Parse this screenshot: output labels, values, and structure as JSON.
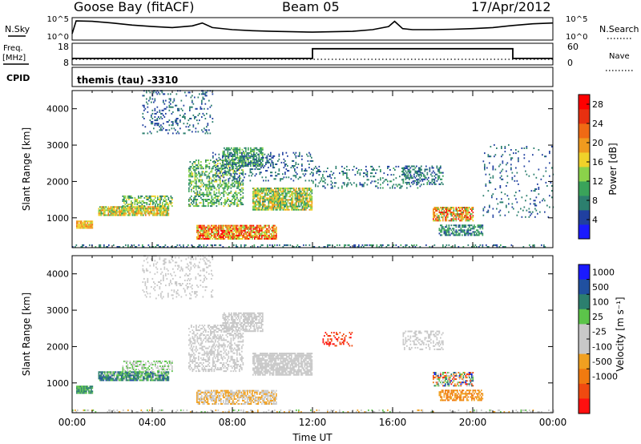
{
  "header": {
    "station": "Goose Bay (fitACF)",
    "beam": "Beam 05",
    "date": "17/Apr/2012"
  },
  "side_labels": {
    "nsky": "N.Sky",
    "nsearch": "N.Search",
    "freq": "Freq.",
    "freq_unit": "[MHz]",
    "nave": "Nave",
    "cpid": "CPID",
    "mode": "themis (tau) -3310"
  },
  "colors": {
    "power": [
      "#1a1aff",
      "#2040a0",
      "#2c7f6e",
      "#3aa35a",
      "#8bd24a",
      "#f0d22a",
      "#f09a1e",
      "#f06a14",
      "#e83010",
      "#ff0000"
    ],
    "velocity": [
      "#1a1aff",
      "#2050a0",
      "#2c7f6e",
      "#5cc44a",
      "#c8c8c8",
      "#c8c8c8",
      "#f0a020",
      "#f07a10",
      "#f04a10",
      "#ff1010"
    ]
  },
  "chart_data": [
    {
      "type": "line",
      "name": "noise",
      "left_ticks": [
        "10^5",
        "10^0"
      ],
      "right_ticks": [
        "10^5",
        "10^0"
      ],
      "x": [
        0,
        0.2,
        1,
        2,
        3,
        4,
        5,
        6,
        6.5,
        7,
        8,
        9,
        10,
        11,
        12,
        13,
        14,
        15,
        15.8,
        16.1,
        16.5,
        17,
        18,
        19,
        20,
        21,
        22,
        23,
        24
      ],
      "y": [
        0.3,
        0.92,
        0.9,
        0.82,
        0.72,
        0.65,
        0.6,
        0.68,
        0.82,
        0.6,
        0.5,
        0.45,
        0.42,
        0.4,
        0.38,
        0.4,
        0.42,
        0.5,
        0.65,
        0.9,
        0.55,
        0.5,
        0.5,
        0.52,
        0.55,
        0.6,
        0.7,
        0.78,
        0.82
      ]
    },
    {
      "type": "line",
      "name": "freq-nave",
      "left_ticks": [
        "18",
        "8"
      ],
      "right_ticks": [
        "60",
        "0"
      ],
      "x": [
        0,
        12,
        12,
        22,
        22,
        24
      ],
      "y": [
        11,
        11,
        15.5,
        15.5,
        11,
        11
      ],
      "ylim": [
        8,
        18
      ]
    },
    {
      "type": "heatmap",
      "name": "power",
      "xlabel": "",
      "ylabel": "Slant Range [km]",
      "xlim": [
        0,
        24
      ],
      "ylim": [
        180,
        4500
      ],
      "yticks": [
        1000,
        2000,
        3000,
        4000
      ],
      "colorbar_label": "Power [dB]",
      "colorbar_ticks": [
        4,
        8,
        12,
        16,
        20,
        24,
        28
      ],
      "clim": [
        0,
        30
      ],
      "regions": [
        {
          "x": [
            0.2,
            1.0
          ],
          "y": [
            700,
            900
          ],
          "v": [
            14,
            22
          ],
          "d": 0.9
        },
        {
          "x": [
            1.3,
            4.8
          ],
          "y": [
            1050,
            1300
          ],
          "v": [
            10,
            22
          ],
          "d": 0.85
        },
        {
          "x": [
            2.5,
            5.0
          ],
          "y": [
            1300,
            1600
          ],
          "v": [
            6,
            18
          ],
          "d": 0.55
        },
        {
          "x": [
            5.8,
            8.5
          ],
          "y": [
            1300,
            2600
          ],
          "v": [
            6,
            16
          ],
          "d": 0.45
        },
        {
          "x": [
            7.5,
            9.5
          ],
          "y": [
            2400,
            2900
          ],
          "v": [
            6,
            14
          ],
          "d": 0.6
        },
        {
          "x": [
            6.2,
            10.2
          ],
          "y": [
            400,
            800
          ],
          "v": [
            12,
            30
          ],
          "d": 0.85
        },
        {
          "x": [
            9.0,
            12.0
          ],
          "y": [
            1200,
            1800
          ],
          "v": [
            8,
            20
          ],
          "d": 0.8
        },
        {
          "x": [
            3.5,
            7.0
          ],
          "y": [
            3300,
            4500
          ],
          "v": [
            4,
            8
          ],
          "d": 0.18
        },
        {
          "x": [
            7.0,
            12.0
          ],
          "y": [
            2000,
            2800
          ],
          "v": [
            4,
            8
          ],
          "d": 0.2
        },
        {
          "x": [
            12.0,
            17.5
          ],
          "y": [
            1800,
            2400
          ],
          "v": [
            4,
            10
          ],
          "d": 0.18
        },
        {
          "x": [
            16.5,
            18.5
          ],
          "y": [
            1900,
            2400
          ],
          "v": [
            4,
            10
          ],
          "d": 0.4
        },
        {
          "x": [
            18.0,
            20.0
          ],
          "y": [
            900,
            1300
          ],
          "v": [
            10,
            28
          ],
          "d": 0.7
        },
        {
          "x": [
            18.3,
            20.5
          ],
          "y": [
            500,
            800
          ],
          "v": [
            4,
            12
          ],
          "d": 0.6
        },
        {
          "x": [
            20.5,
            24.0
          ],
          "y": [
            1000,
            3000
          ],
          "v": [
            4,
            8
          ],
          "d": 0.08
        },
        {
          "x": [
            0.0,
            24.0
          ],
          "y": [
            180,
            260
          ],
          "v": [
            4,
            10
          ],
          "d": 0.25
        }
      ]
    },
    {
      "type": "heatmap",
      "name": "velocity",
      "xlabel": "Time UT",
      "ylabel": "Slant Range [km]",
      "xlim": [
        0,
        24
      ],
      "ylim": [
        180,
        4500
      ],
      "xticks": [
        "00:00",
        "04:00",
        "08:00",
        "12:00",
        "16:00",
        "20:00",
        "00:00"
      ],
      "yticks": [
        1000,
        2000,
        3000,
        4000
      ],
      "colorbar_label": "Velocity [m s⁻¹]",
      "colorbar_ticks": [
        "1000",
        "500",
        "100",
        "25",
        "-25",
        "-100",
        "-500",
        "-1000"
      ],
      "regions": [
        {
          "x": [
            0.2,
            1.0
          ],
          "y": [
            700,
            900
          ],
          "c": [
            2,
            3
          ],
          "d": 0.9
        },
        {
          "x": [
            1.3,
            4.8
          ],
          "y": [
            1050,
            1300
          ],
          "c": [
            1,
            4
          ],
          "d": 0.85
        },
        {
          "x": [
            2.5,
            5.0
          ],
          "y": [
            1300,
            1600
          ],
          "c": [
            3,
            4
          ],
          "d": 0.5
        },
        {
          "x": [
            5.8,
            8.5
          ],
          "y": [
            1300,
            2600
          ],
          "c": [
            4,
            5
          ],
          "d": 0.45
        },
        {
          "x": [
            7.5,
            9.5
          ],
          "y": [
            2400,
            2900
          ],
          "c": [
            4,
            5
          ],
          "d": 0.6
        },
        {
          "x": [
            6.2,
            10.2
          ],
          "y": [
            400,
            800
          ],
          "c": [
            5,
            6
          ],
          "d": 0.7
        },
        {
          "x": [
            9.0,
            12.0
          ],
          "y": [
            1200,
            1800
          ],
          "c": [
            4,
            5
          ],
          "d": 0.8
        },
        {
          "x": [
            3.5,
            7.0
          ],
          "y": [
            3300,
            4500
          ],
          "c": [
            4,
            4
          ],
          "d": 0.15
        },
        {
          "x": [
            12.5,
            14.0
          ],
          "y": [
            2000,
            2400
          ],
          "c": [
            8,
            9
          ],
          "d": 0.3
        },
        {
          "x": [
            16.5,
            18.5
          ],
          "y": [
            1900,
            2400
          ],
          "c": [
            4,
            5
          ],
          "d": 0.35
        },
        {
          "x": [
            18.0,
            20.0
          ],
          "y": [
            900,
            1300
          ],
          "c": [
            0,
            9
          ],
          "d": 0.6
        },
        {
          "x": [
            18.3,
            20.5
          ],
          "y": [
            500,
            800
          ],
          "c": [
            6,
            7
          ],
          "d": 0.6
        },
        {
          "x": [
            0.0,
            24.0
          ],
          "y": [
            180,
            260
          ],
          "c": [
            3,
            6
          ],
          "d": 0.2
        }
      ]
    }
  ]
}
